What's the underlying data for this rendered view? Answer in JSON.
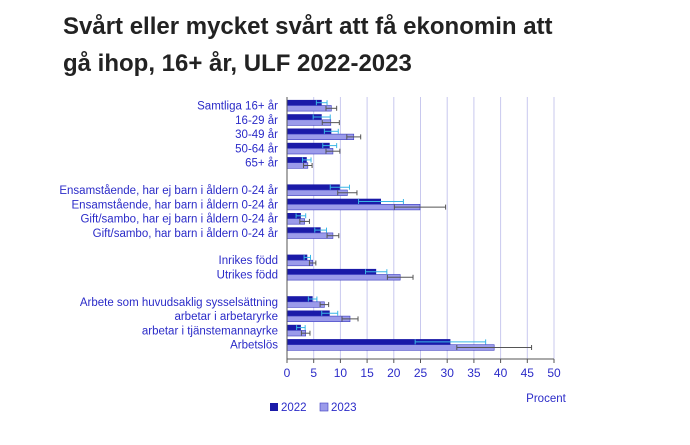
{
  "title_lines": [
    "Svårt eller mycket svårt att få ekonomin att",
    "gå ihop, 16+ år, ULF 2022-2023"
  ],
  "colors": {
    "series_2022": "#1a1aa8",
    "series_2023": "#9b9bea",
    "error_bar_2022": "#3ab6e6",
    "error_bar_2023": "#555555",
    "text": "#2b2bc8",
    "grid": "#c8c8ee"
  },
  "chart_data": {
    "type": "bar",
    "orientation": "horizontal",
    "title": "Svårt eller mycket svårt att få ekonomin att gå ihop, 16+ år, ULF 2022-2023",
    "xlabel": "Procent",
    "ylabel": "",
    "xlim": [
      0,
      50
    ],
    "xticks": [
      0,
      5,
      10,
      15,
      20,
      25,
      30,
      35,
      40,
      45,
      50
    ],
    "grid": "vertical",
    "legend_position": "bottom",
    "groups": [
      {
        "categories": [
          "Samtliga 16+ år",
          "16-29 år",
          "30-49 år",
          "50-64 år",
          "65+ år"
        ]
      },
      {
        "categories": [
          "Ensamstående, har ej barn i åldern 0-24 år",
          "Ensamstående, har barn i åldern 0-24 år",
          "Gift/sambo, har ej barn i åldern 0-24 år",
          "Gift/sambo, har barn i åldern 0-24 år"
        ]
      },
      {
        "categories": [
          "Inrikes född",
          "Utrikes född"
        ]
      },
      {
        "categories": [
          "Arbete som huvudsaklig sysselsättning",
          "arbetar i arbetaryrke",
          "arbetar i tjänstemannayrke",
          "Arbetslös"
        ]
      }
    ],
    "series": [
      {
        "name": "2022",
        "values": [
          6.5,
          6.5,
          8.3,
          8.0,
          3.7,
          9.9,
          17.6,
          2.6,
          6.3,
          3.8,
          16.7,
          4.8,
          8.0,
          2.6,
          30.6
        ],
        "error": [
          1.0,
          1.6,
          1.3,
          1.3,
          0.8,
          1.8,
          4.2,
          0.9,
          1.1,
          0.6,
          2.0,
          0.8,
          1.5,
          0.8,
          6.6
        ]
      },
      {
        "name": "2023",
        "values": [
          8.3,
          8.2,
          12.5,
          8.6,
          3.9,
          11.3,
          24.9,
          3.3,
          8.6,
          4.8,
          21.2,
          7.0,
          11.8,
          3.5,
          38.8
        ],
        "error": [
          1.0,
          1.6,
          1.3,
          1.3,
          0.8,
          1.8,
          4.8,
          0.9,
          1.1,
          0.6,
          2.4,
          0.8,
          1.5,
          0.8,
          7.0
        ]
      }
    ]
  }
}
